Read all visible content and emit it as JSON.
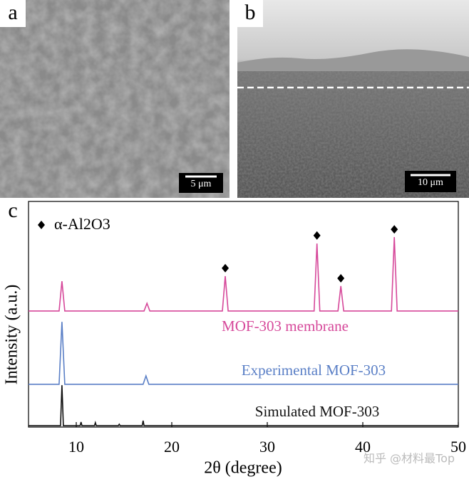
{
  "images": [
    {
      "label": "a",
      "scale_bar": "5 μm"
    },
    {
      "label": "b",
      "scale_bar": "10 μm"
    }
  ],
  "watermark": "知乎 @材料最Top",
  "chart_data": {
    "type": "line",
    "panel_label": "c",
    "x_label": "2θ (degree)",
    "y_label": "Intensity (a.u.)",
    "xlim": [
      5,
      50
    ],
    "xticks": [
      10,
      20,
      30,
      40,
      50
    ],
    "ylim": [
      0,
      100
    ],
    "series": [
      {
        "name": "MOF-303 membrane",
        "color": "#d6489a",
        "x": [
          5,
          8.2,
          8.5,
          8.8,
          17.1,
          17.4,
          17.7,
          25.3,
          25.6,
          25.9,
          34.9,
          35.2,
          35.5,
          37.4,
          37.7,
          38.0,
          43.0,
          43.3,
          43.6,
          50
        ],
        "values": [
          52.6,
          52.6,
          66.1,
          52.6,
          52.6,
          56.1,
          52.6,
          52.6,
          68.4,
          52.6,
          52.6,
          83.2,
          52.6,
          52.6,
          63.9,
          52.6,
          52.6,
          86.1,
          52.6,
          52.6
        ]
      },
      {
        "name": "Experimental MOF-303",
        "color": "#5a7fc6",
        "x": [
          5,
          8.2,
          8.5,
          8.8,
          17.0,
          17.3,
          17.6,
          50
        ],
        "values": [
          19.4,
          19.4,
          47.7,
          19.4,
          19.4,
          23.2,
          19.4,
          19.4
        ]
      },
      {
        "name": "Simulated MOF-303",
        "color": "#111111",
        "x": [
          5,
          8.35,
          8.5,
          8.65,
          10.4,
          10.5,
          10.6,
          11.9,
          12.0,
          12.1,
          14.4,
          14.5,
          14.6,
          16.9,
          17.0,
          17.1,
          50
        ],
        "values": [
          0.6,
          0.6,
          19,
          0.6,
          0.6,
          2.3,
          0.6,
          0.6,
          2.0,
          0.6,
          0.6,
          1.3,
          0.6,
          0.6,
          2.9,
          0.6,
          0.6
        ]
      }
    ],
    "markers": {
      "name": "α-Al2O3",
      "color": "#000000",
      "x": [
        25.6,
        35.2,
        37.7,
        43.3
      ],
      "values": [
        72,
        86.8,
        67.4,
        89.6
      ]
    }
  }
}
